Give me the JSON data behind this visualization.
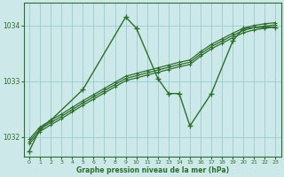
{
  "background_color": "#cce8e8",
  "grid_color": "#99cccc",
  "line_color": "#2d6e2d",
  "text_color": "#2d6e2d",
  "xlabel": "Graphe pression niveau de la mer (hPa)",
  "xlim": [
    -0.5,
    23.5
  ],
  "ylim": [
    1031.65,
    1034.4
  ],
  "yticks": [
    1032,
    1033,
    1034
  ],
  "xticks": [
    0,
    1,
    2,
    3,
    4,
    5,
    6,
    7,
    8,
    9,
    10,
    11,
    12,
    13,
    14,
    15,
    16,
    17,
    18,
    19,
    20,
    21,
    22,
    23
  ],
  "spiky_x": [
    0,
    1,
    2,
    5,
    9,
    10,
    12,
    13,
    14,
    15,
    17,
    19,
    20,
    22,
    23
  ],
  "spiky_y": [
    1031.75,
    1032.15,
    1032.3,
    1032.85,
    1034.15,
    1033.95,
    1033.05,
    1032.78,
    1032.78,
    1032.2,
    1032.78,
    1033.72,
    1033.95,
    1033.97,
    1033.97
  ],
  "smooth1_x": [
    0,
    1,
    2,
    3,
    4,
    5,
    6,
    7,
    8,
    9,
    10,
    11,
    12,
    13,
    14,
    15,
    16,
    17,
    18,
    19,
    20,
    21,
    22,
    23
  ],
  "smooth1_y": [
    1031.88,
    1032.1,
    1032.22,
    1032.33,
    1032.45,
    1032.57,
    1032.68,
    1032.79,
    1032.9,
    1033.01,
    1033.06,
    1033.11,
    1033.16,
    1033.21,
    1033.26,
    1033.3,
    1033.45,
    1033.58,
    1033.68,
    1033.78,
    1033.87,
    1033.92,
    1033.95,
    1033.97
  ],
  "smooth2_x": [
    0,
    1,
    2,
    3,
    4,
    5,
    6,
    7,
    8,
    9,
    10,
    11,
    12,
    13,
    14,
    15,
    16,
    17,
    18,
    19,
    20,
    21,
    22,
    23
  ],
  "smooth2_y": [
    1031.92,
    1032.14,
    1032.26,
    1032.37,
    1032.49,
    1032.61,
    1032.72,
    1032.83,
    1032.94,
    1033.05,
    1033.1,
    1033.15,
    1033.2,
    1033.25,
    1033.3,
    1033.34,
    1033.49,
    1033.62,
    1033.72,
    1033.82,
    1033.91,
    1033.96,
    1033.99,
    1034.01
  ],
  "smooth3_x": [
    0,
    1,
    2,
    3,
    4,
    5,
    6,
    7,
    8,
    9,
    10,
    11,
    12,
    13,
    14,
    15,
    16,
    17,
    18,
    19,
    20,
    21,
    22,
    23
  ],
  "smooth3_y": [
    1031.96,
    1032.18,
    1032.3,
    1032.41,
    1032.53,
    1032.65,
    1032.76,
    1032.87,
    1032.98,
    1033.09,
    1033.14,
    1033.19,
    1033.24,
    1033.29,
    1033.34,
    1033.38,
    1033.53,
    1033.66,
    1033.76,
    1033.86,
    1033.95,
    1034.0,
    1034.03,
    1034.05
  ]
}
